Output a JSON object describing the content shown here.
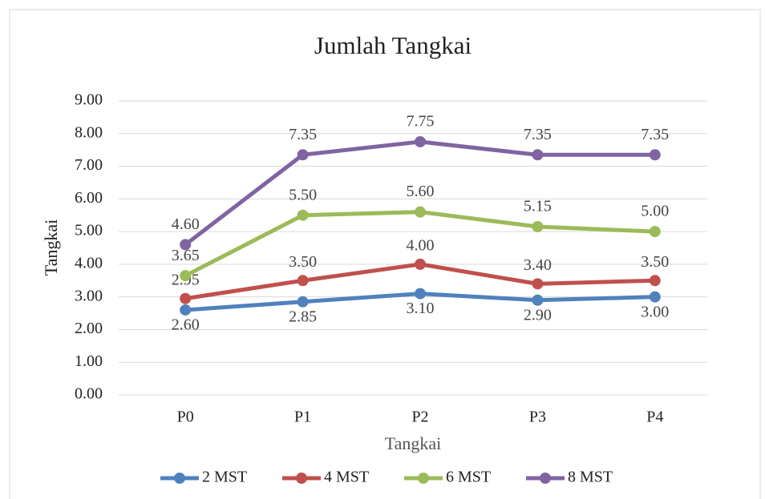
{
  "chart_data": {
    "type": "line",
    "title": "Jumlah Tangkai",
    "x_label": "Tangkai",
    "y_label": "Tangkai",
    "categories": [
      "P0",
      "P1",
      "P2",
      "P3",
      "P4"
    ],
    "series": [
      {
        "name": "2 MST",
        "color": "#4f81bd",
        "values": [
          2.6,
          2.85,
          3.1,
          2.9,
          3.0
        ],
        "value_labels": [
          "2.60",
          "2.85",
          "3.10",
          "2.90",
          "3.00"
        ]
      },
      {
        "name": "4 MST",
        "color": "#c0504d",
        "values": [
          2.95,
          3.5,
          4.0,
          3.4,
          3.5
        ],
        "value_labels": [
          "2.95",
          "3.50",
          "4.00",
          "3.40",
          "3.50"
        ]
      },
      {
        "name": "6 MST",
        "color": "#9bbb59",
        "values": [
          3.65,
          5.5,
          5.6,
          5.15,
          5.0
        ],
        "value_labels": [
          "3.65",
          "5.50",
          "5.60",
          "5.15",
          "5.00"
        ]
      },
      {
        "name": "8 MST",
        "color": "#8064a2",
        "values": [
          4.6,
          7.35,
          7.75,
          7.35,
          7.35
        ],
        "value_labels": [
          "4.60",
          "7.35",
          "7.75",
          "7.35",
          "7.35"
        ]
      }
    ],
    "ylim": [
      0,
      9
    ],
    "yticks": [
      {
        "value": 0,
        "label": "0.00"
      },
      {
        "value": 1,
        "label": "1.00"
      },
      {
        "value": 2,
        "label": "2.00"
      },
      {
        "value": 3,
        "label": "3.00"
      },
      {
        "value": 4,
        "label": "4.00"
      },
      {
        "value": 5,
        "label": "5.00"
      },
      {
        "value": 6,
        "label": "6.00"
      },
      {
        "value": 7,
        "label": "7.00"
      },
      {
        "value": 8,
        "label": "8.00"
      },
      {
        "value": 9,
        "label": "9.00"
      }
    ],
    "grid": true,
    "legend": "bottom"
  }
}
